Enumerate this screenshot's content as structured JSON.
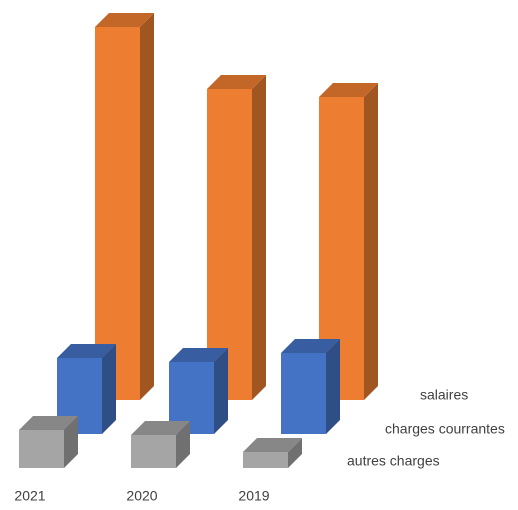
{
  "chart_data": {
    "type": "bar3d",
    "categories": [
      "2021",
      "2020",
      "2019"
    ],
    "series": [
      {
        "name": "salaires",
        "color": "#ed7d31",
        "values": [
          373,
          311,
          303
        ]
      },
      {
        "name": "charges courrantes",
        "color": "#4472c4",
        "values": [
          76,
          72,
          81
        ]
      },
      {
        "name": "autres charges",
        "color": "#a5a5a5",
        "values": [
          38,
          33,
          16
        ]
      }
    ]
  }
}
